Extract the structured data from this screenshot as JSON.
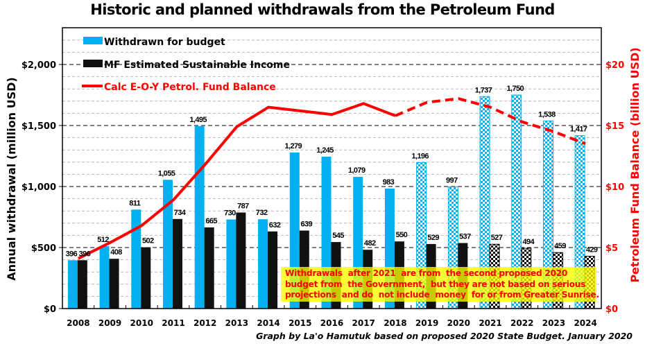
{
  "chart_data": {
    "type": "bar",
    "title": "Historic and planned withdrawals from the Petroleum Fund",
    "xlabel": "",
    "ylabel": "Annual withdrawal (million USD)",
    "y2label": "Petroleum Fund Balance (billion USD)",
    "ylim": [
      0,
      2250
    ],
    "y2lim": [
      0,
      22.5
    ],
    "yticks": [
      0,
      500,
      1000,
      1500,
      2000
    ],
    "ytick_labels": [
      "$0",
      "$500",
      "$1,000",
      "$1,500",
      "$2,000"
    ],
    "y2ticks": [
      0,
      5,
      10,
      15,
      20
    ],
    "y2tick_labels": [
      "$0",
      "$5",
      "$10",
      "$15",
      "$20"
    ],
    "grid": true,
    "legend_position": "top-left",
    "categories": [
      "2008",
      "2009",
      "2010",
      "2011",
      "2012",
      "2013",
      "2014",
      "2015",
      "2016",
      "2017",
      "2018",
      "2019",
      "2020",
      "2021",
      "2022",
      "2023",
      "2024"
    ],
    "series": [
      {
        "name": "Withdrawn for budget",
        "kind": "bar",
        "color": "#00b0f0",
        "values": [
          396,
          512,
          811,
          1055,
          1495,
          730,
          732,
          1279,
          1245,
          1079,
          983,
          1196,
          997,
          1737,
          1750,
          1538,
          1417
        ],
        "labels": [
          "396",
          "512",
          "811",
          "1,055",
          "1,495",
          "730",
          "732",
          "1,279",
          "1,245",
          "1,079",
          "983",
          "1,196",
          "997",
          "1,737",
          "1,750",
          "1,538",
          "1,417"
        ],
        "projected_from_index": 11
      },
      {
        "name": "MF Estimated Sustainable Income",
        "kind": "bar",
        "color": "#000000",
        "values": [
          396,
          408,
          502,
          734,
          665,
          787,
          632,
          639,
          545,
          482,
          550,
          529,
          537,
          527,
          494,
          459,
          429
        ],
        "labels": [
          "396",
          "408",
          "502",
          "734",
          "665",
          "787",
          "632",
          "639",
          "545",
          "482",
          "550",
          "529",
          "537",
          "527",
          "494",
          "459",
          "429"
        ],
        "projected_from_index": 13
      },
      {
        "name": "Calc E-O-Y Petrol. Fund Balance",
        "kind": "line",
        "axis": "right",
        "color": "#ff0000",
        "values": [
          4.1,
          5.4,
          6.8,
          8.9,
          11.8,
          14.9,
          16.5,
          16.2,
          15.9,
          16.8,
          15.8,
          16.9,
          17.2,
          16.5,
          15.3,
          14.5,
          13.5
        ],
        "dashed_from_index": 10
      }
    ],
    "annotation": "Withdrawals  after 2021  are from  the second proposed 2020\nbudget from  the Government,  but they are not based on serious\nprojections  and do  not include  money  for or from Greater Sunrise.",
    "credit": "Graph by La'o Hamutuk based on proposed 2020 State Budget. January 2020"
  }
}
